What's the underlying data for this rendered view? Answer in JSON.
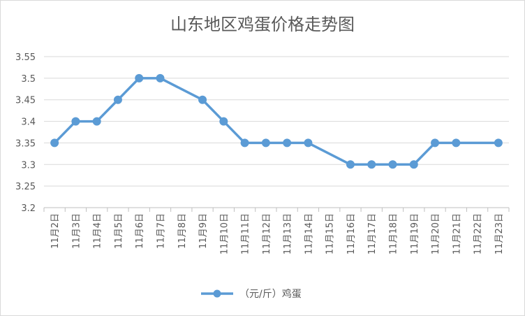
{
  "chart_data": {
    "type": "line",
    "title": "山东地区鸡蛋价格走势图",
    "xlabel": "",
    "ylabel": "",
    "ylim": [
      3.2,
      3.55
    ],
    "yticks": [
      "3.2",
      "3.25",
      "3.3",
      "3.35",
      "3.4",
      "3.45",
      "3.5",
      "3.55"
    ],
    "categories": [
      "11月2日",
      "11月3日",
      "11月4日",
      "11月5日",
      "11月6日",
      "11月7日",
      "11月8日",
      "11月9日",
      "11月10日",
      "11月11日",
      "11月12日",
      "11月13日",
      "11月14日",
      "11月15日",
      "11月16日",
      "11月17日",
      "11月18日",
      "11月19日",
      "11月20日",
      "11月21日",
      "11月22日",
      "11月23日"
    ],
    "series": [
      {
        "name": "（元/斤）鸡蛋",
        "color": "#5b9bd5",
        "values": [
          3.35,
          3.4,
          3.4,
          3.45,
          3.5,
          3.5,
          null,
          3.45,
          3.4,
          3.35,
          3.35,
          3.35,
          3.35,
          null,
          3.3,
          3.3,
          3.3,
          3.3,
          3.35,
          3.35,
          null,
          3.35
        ]
      }
    ],
    "grid": true,
    "legend": "bottom"
  }
}
